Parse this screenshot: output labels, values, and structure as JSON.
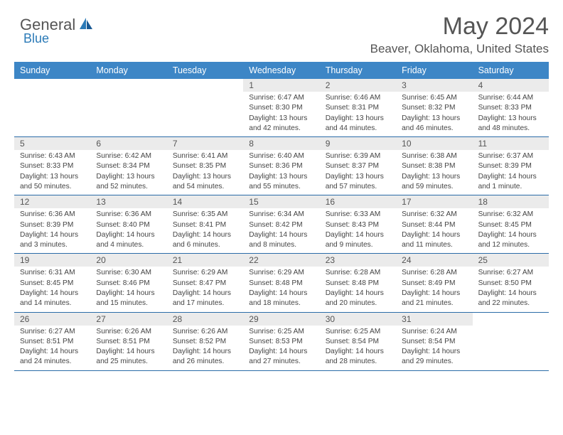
{
  "brand": {
    "top": "General",
    "bottom": "Blue"
  },
  "title": "May 2024",
  "location": "Beaver, Oklahoma, United States",
  "colors": {
    "header_bg": "#3d86c6",
    "header_text": "#ffffff",
    "row_border": "#2b6ca8",
    "daynum_bg": "#ebebeb",
    "text_gray": "#555555",
    "info_text": "#444444",
    "brand_blue": "#2b7ab7"
  },
  "typography": {
    "title_size": 34,
    "location_size": 17,
    "header_cell_size": 12.5,
    "daynum_size": 12,
    "info_size": 10.2,
    "font_family": "Arial"
  },
  "layout": {
    "cols": 7,
    "rows": 5
  },
  "days_of_week": [
    "Sunday",
    "Monday",
    "Tuesday",
    "Wednesday",
    "Thursday",
    "Friday",
    "Saturday"
  ],
  "weeks": [
    [
      null,
      null,
      null,
      {
        "n": "1",
        "sunrise": "6:47 AM",
        "sunset": "8:30 PM",
        "daylight": "13 hours and 42 minutes."
      },
      {
        "n": "2",
        "sunrise": "6:46 AM",
        "sunset": "8:31 PM",
        "daylight": "13 hours and 44 minutes."
      },
      {
        "n": "3",
        "sunrise": "6:45 AM",
        "sunset": "8:32 PM",
        "daylight": "13 hours and 46 minutes."
      },
      {
        "n": "4",
        "sunrise": "6:44 AM",
        "sunset": "8:33 PM",
        "daylight": "13 hours and 48 minutes."
      }
    ],
    [
      {
        "n": "5",
        "sunrise": "6:43 AM",
        "sunset": "8:33 PM",
        "daylight": "13 hours and 50 minutes."
      },
      {
        "n": "6",
        "sunrise": "6:42 AM",
        "sunset": "8:34 PM",
        "daylight": "13 hours and 52 minutes."
      },
      {
        "n": "7",
        "sunrise": "6:41 AM",
        "sunset": "8:35 PM",
        "daylight": "13 hours and 54 minutes."
      },
      {
        "n": "8",
        "sunrise": "6:40 AM",
        "sunset": "8:36 PM",
        "daylight": "13 hours and 55 minutes."
      },
      {
        "n": "9",
        "sunrise": "6:39 AM",
        "sunset": "8:37 PM",
        "daylight": "13 hours and 57 minutes."
      },
      {
        "n": "10",
        "sunrise": "6:38 AM",
        "sunset": "8:38 PM",
        "daylight": "13 hours and 59 minutes."
      },
      {
        "n": "11",
        "sunrise": "6:37 AM",
        "sunset": "8:39 PM",
        "daylight": "14 hours and 1 minute."
      }
    ],
    [
      {
        "n": "12",
        "sunrise": "6:36 AM",
        "sunset": "8:39 PM",
        "daylight": "14 hours and 3 minutes."
      },
      {
        "n": "13",
        "sunrise": "6:36 AM",
        "sunset": "8:40 PM",
        "daylight": "14 hours and 4 minutes."
      },
      {
        "n": "14",
        "sunrise": "6:35 AM",
        "sunset": "8:41 PM",
        "daylight": "14 hours and 6 minutes."
      },
      {
        "n": "15",
        "sunrise": "6:34 AM",
        "sunset": "8:42 PM",
        "daylight": "14 hours and 8 minutes."
      },
      {
        "n": "16",
        "sunrise": "6:33 AM",
        "sunset": "8:43 PM",
        "daylight": "14 hours and 9 minutes."
      },
      {
        "n": "17",
        "sunrise": "6:32 AM",
        "sunset": "8:44 PM",
        "daylight": "14 hours and 11 minutes."
      },
      {
        "n": "18",
        "sunrise": "6:32 AM",
        "sunset": "8:45 PM",
        "daylight": "14 hours and 12 minutes."
      }
    ],
    [
      {
        "n": "19",
        "sunrise": "6:31 AM",
        "sunset": "8:45 PM",
        "daylight": "14 hours and 14 minutes."
      },
      {
        "n": "20",
        "sunrise": "6:30 AM",
        "sunset": "8:46 PM",
        "daylight": "14 hours and 15 minutes."
      },
      {
        "n": "21",
        "sunrise": "6:29 AM",
        "sunset": "8:47 PM",
        "daylight": "14 hours and 17 minutes."
      },
      {
        "n": "22",
        "sunrise": "6:29 AM",
        "sunset": "8:48 PM",
        "daylight": "14 hours and 18 minutes."
      },
      {
        "n": "23",
        "sunrise": "6:28 AM",
        "sunset": "8:48 PM",
        "daylight": "14 hours and 20 minutes."
      },
      {
        "n": "24",
        "sunrise": "6:28 AM",
        "sunset": "8:49 PM",
        "daylight": "14 hours and 21 minutes."
      },
      {
        "n": "25",
        "sunrise": "6:27 AM",
        "sunset": "8:50 PM",
        "daylight": "14 hours and 22 minutes."
      }
    ],
    [
      {
        "n": "26",
        "sunrise": "6:27 AM",
        "sunset": "8:51 PM",
        "daylight": "14 hours and 24 minutes."
      },
      {
        "n": "27",
        "sunrise": "6:26 AM",
        "sunset": "8:51 PM",
        "daylight": "14 hours and 25 minutes."
      },
      {
        "n": "28",
        "sunrise": "6:26 AM",
        "sunset": "8:52 PM",
        "daylight": "14 hours and 26 minutes."
      },
      {
        "n": "29",
        "sunrise": "6:25 AM",
        "sunset": "8:53 PM",
        "daylight": "14 hours and 27 minutes."
      },
      {
        "n": "30",
        "sunrise": "6:25 AM",
        "sunset": "8:54 PM",
        "daylight": "14 hours and 28 minutes."
      },
      {
        "n": "31",
        "sunrise": "6:24 AM",
        "sunset": "8:54 PM",
        "daylight": "14 hours and 29 minutes."
      },
      null
    ]
  ],
  "labels": {
    "sunrise": "Sunrise:",
    "sunset": "Sunset:",
    "daylight": "Daylight:"
  }
}
